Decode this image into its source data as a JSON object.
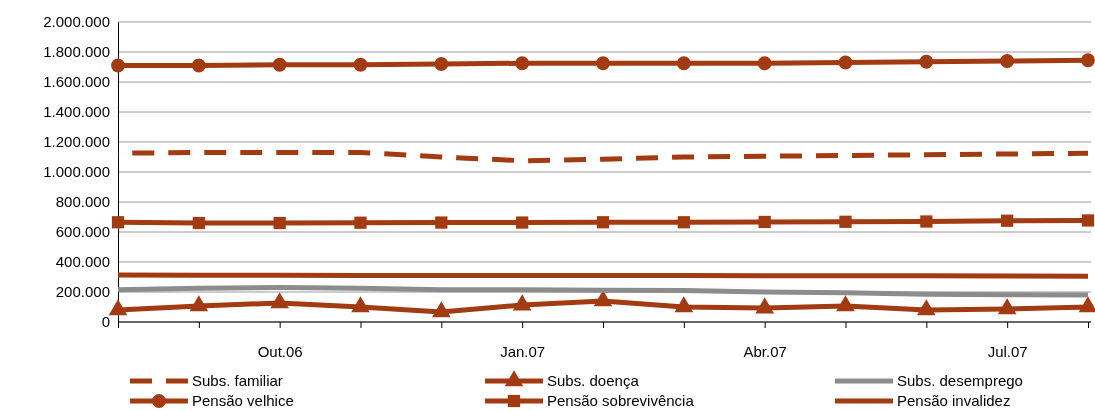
{
  "chart_data": {
    "type": "line",
    "categories": [
      null,
      null,
      "Out.06",
      null,
      null,
      "Jan.07",
      null,
      null,
      "Abr.07",
      null,
      null,
      "Jul.07",
      null
    ],
    "ylim": [
      0,
      2000000
    ],
    "yticks": [
      0,
      {
        "value": 200000,
        "label": "200.000"
      },
      {
        "value": 400000,
        "label": "400.000"
      },
      {
        "value": 600000,
        "label": "600.000"
      },
      {
        "value": 800000,
        "label": "800.000"
      },
      {
        "value": 1000000,
        "label": "1.000.000"
      },
      {
        "value": 1200000,
        "label": "1.200.000"
      },
      {
        "value": 1400000,
        "label": "1.400.000"
      },
      {
        "value": 1600000,
        "label": "1.600.000"
      },
      {
        "value": 1800000,
        "label": "1.800.000"
      },
      {
        "value": 2000000,
        "label": "2.000.000"
      }
    ],
    "grid": "y",
    "legend": "bottom",
    "series": [
      {
        "name": "Subs. familiar",
        "color": "#a23b12",
        "line_style": "dashed",
        "marker": "none",
        "values": [
          1125000,
          1130000,
          1130000,
          1130000,
          1100000,
          1075000,
          1085000,
          1100000,
          1105000,
          1110000,
          1115000,
          1120000,
          1125000
        ]
      },
      {
        "name": "Subs. doença",
        "color": "#a23b12",
        "marker": "triangle",
        "values": [
          80000,
          107000,
          127000,
          100000,
          67000,
          113000,
          140000,
          100000,
          93000,
          107000,
          80000,
          87000,
          100000
        ]
      },
      {
        "name": "Subs. desemprego",
        "color": "#8c8c8c",
        "marker": "none",
        "values": [
          215000,
          225000,
          230000,
          225000,
          215000,
          215000,
          212000,
          210000,
          200000,
          195000,
          185000,
          182000,
          180000
        ]
      },
      {
        "name": "Pensão velhice",
        "color": "#a23b12",
        "marker": "circle",
        "values": [
          1710000,
          1710000,
          1715000,
          1715000,
          1720000,
          1725000,
          1725000,
          1725000,
          1725000,
          1730000,
          1735000,
          1740000,
          1745000
        ]
      },
      {
        "name": "Pensão sobrevivência",
        "color": "#a23b12",
        "marker": "square",
        "values": [
          665000,
          660000,
          660000,
          662000,
          663000,
          663000,
          665000,
          665000,
          667000,
          668000,
          670000,
          675000,
          677000
        ]
      },
      {
        "name": "Pensão invalidez",
        "color": "#a23b12",
        "marker": "none",
        "values": [
          313000,
          312000,
          311000,
          310000,
          310000,
          310000,
          310000,
          310000,
          309000,
          309000,
          308000,
          307000,
          305000
        ]
      }
    ]
  }
}
